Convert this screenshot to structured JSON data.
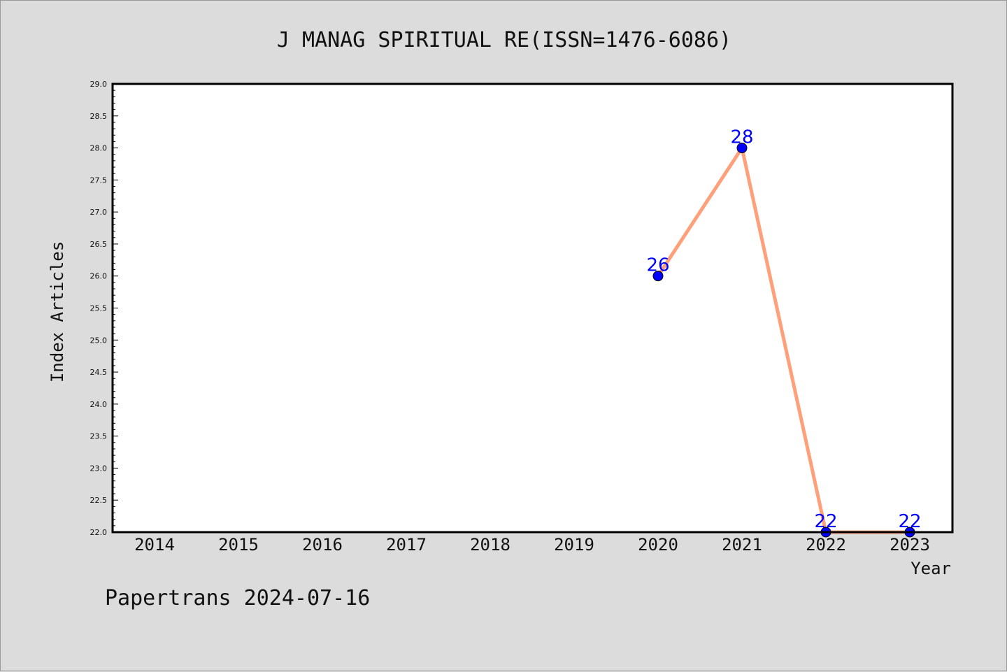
{
  "chart_data": {
    "type": "line",
    "title": "J MANAG SPIRITUAL RE(ISSN=1476-6086)",
    "xlabel": "Year",
    "ylabel": "Index Articles",
    "categories": [
      "2014",
      "2015",
      "2016",
      "2017",
      "2018",
      "2019",
      "2020",
      "2021",
      "2022",
      "2023"
    ],
    "ylim": [
      22.0,
      29.0
    ],
    "yticks": [
      "22.0",
      "22.5",
      "23.0",
      "23.5",
      "24.0",
      "24.5",
      "25.0",
      "25.5",
      "26.0",
      "26.5",
      "27.0",
      "27.5",
      "28.0",
      "28.5",
      "29.0"
    ],
    "series": [
      {
        "x": [
          "2020",
          "2021",
          "2022",
          "2023"
        ],
        "values": [
          26,
          28,
          22,
          22
        ],
        "labels": [
          "26",
          "28",
          "22",
          "22"
        ],
        "line_color": "#ffa07a",
        "marker_color": "#0000ff",
        "label_color": "#0000ff"
      }
    ],
    "grid": false,
    "background": "#dcdcdc",
    "plot_background": "#ffffff"
  },
  "footer": {
    "text": "Papertrans 2024-07-16"
  }
}
